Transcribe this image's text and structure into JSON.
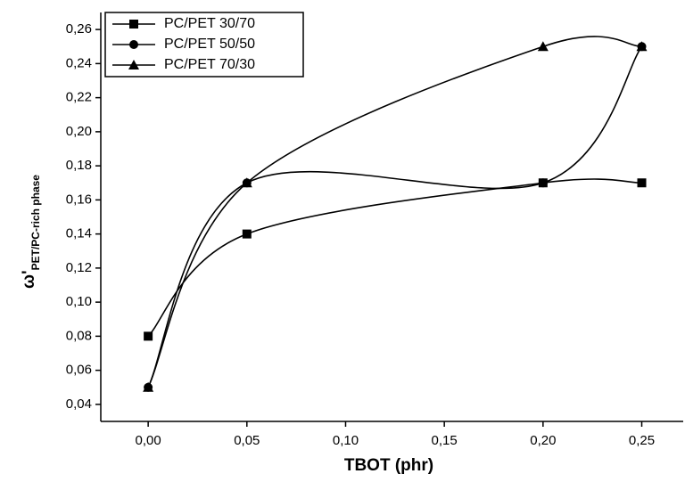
{
  "chart_data": {
    "type": "line",
    "x_label": "TBOT (phr)",
    "y_label": "ω'",
    "y_label_subscript": "PET/PC-rich phase",
    "xlim": [
      -0.024,
      0.271
    ],
    "ylim": [
      0.03,
      0.27
    ],
    "xticks": [
      {
        "value": 0,
        "label": "0,00"
      },
      {
        "value": 0.05,
        "label": "0,05"
      },
      {
        "value": 0.1,
        "label": "0,10"
      },
      {
        "value": 0.15,
        "label": "0,15"
      },
      {
        "value": 0.2,
        "label": "0,20"
      },
      {
        "value": 0.25,
        "label": "0,25"
      }
    ],
    "yticks": [
      {
        "value": 0.04,
        "label": "0,04"
      },
      {
        "value": 0.06,
        "label": "0,06"
      },
      {
        "value": 0.08,
        "label": "0,08"
      },
      {
        "value": 0.1,
        "label": "0,10"
      },
      {
        "value": 0.12,
        "label": "0,12"
      },
      {
        "value": 0.14,
        "label": "0,14"
      },
      {
        "value": 0.16,
        "label": "0,16"
      },
      {
        "value": 0.18,
        "label": "0,18"
      },
      {
        "value": 0.2,
        "label": "0,20"
      },
      {
        "value": 0.22,
        "label": "0,22"
      },
      {
        "value": 0.24,
        "label": "0,24"
      },
      {
        "value": 0.26,
        "label": "0,26"
      }
    ],
    "x": [
      0,
      0.05,
      0.2,
      0.25
    ],
    "legend": "upper left",
    "series": [
      {
        "name": "PC/PET 30/70",
        "color": "#000000",
        "marker": "square",
        "values": [
          0.08,
          0.14,
          0.17,
          0.17
        ]
      },
      {
        "name": "PC/PET 50/50",
        "color": "#000000",
        "marker": "circle",
        "values": [
          0.05,
          0.17,
          0.17,
          0.25
        ]
      },
      {
        "name": "PC/PET 70/30",
        "color": "#000000",
        "marker": "triangle",
        "values": [
          0.05,
          0.17,
          0.25,
          0.25
        ]
      }
    ]
  }
}
